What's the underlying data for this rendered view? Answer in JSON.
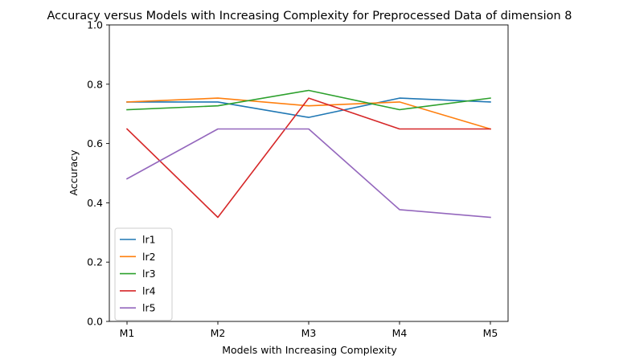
{
  "chart_data": {
    "type": "line",
    "title": "Accuracy versus Models with Increasing Complexity for Preprocessed Data of dimension 8",
    "xlabel": "Models with Increasing Complexity",
    "ylabel": "Accuracy",
    "categories": [
      "M1",
      "M2",
      "M3",
      "M4",
      "M5"
    ],
    "ylim": [
      0,
      1
    ],
    "yticks": [
      "0.0",
      "0.2",
      "0.4",
      "0.6",
      "0.8",
      "1.0"
    ],
    "grid": false,
    "legend_position": "lower-left",
    "series": [
      {
        "name": "lr1",
        "color": "#1f77b4",
        "values": [
          0.74,
          0.74,
          0.688,
          0.753,
          0.74
        ]
      },
      {
        "name": "lr2",
        "color": "#ff7f0e",
        "values": [
          0.74,
          0.753,
          0.727,
          0.74,
          0.649
        ]
      },
      {
        "name": "lr3",
        "color": "#2ca02c",
        "values": [
          0.714,
          0.727,
          0.779,
          0.714,
          0.753
        ]
      },
      {
        "name": "lr4",
        "color": "#d62728",
        "values": [
          0.649,
          0.351,
          0.753,
          0.649,
          0.649
        ]
      },
      {
        "name": "lr5",
        "color": "#9467bd",
        "values": [
          0.481,
          0.649,
          0.649,
          0.377,
          0.351
        ]
      }
    ]
  }
}
